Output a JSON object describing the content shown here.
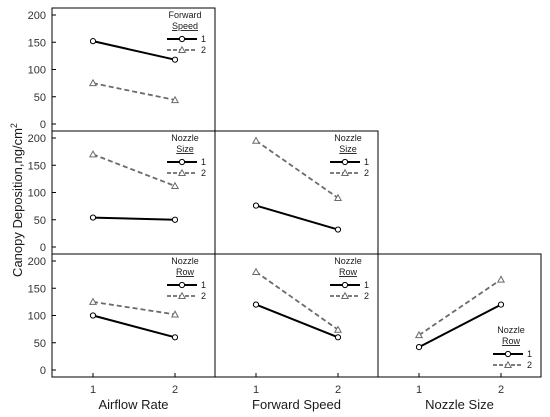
{
  "y_axis_label": "Canopy Deposition,ng/cm",
  "y_axis_label_superscript": "2",
  "x_axis_labels": [
    "Airflow Rate",
    "Forward Speed",
    "Nozzle Size"
  ],
  "colors": {
    "level1": "#000000",
    "level2": "#6b6b6b",
    "axis": "#000000"
  },
  "chart_data": [
    {
      "type": "line",
      "row": 0,
      "col": 0,
      "x": [
        1,
        2
      ],
      "xlabel": "Airflow Rate",
      "ylabel": "Canopy Deposition,ng/cm²",
      "ylim": [
        0,
        200
      ],
      "yticks": [
        0,
        50,
        100,
        150,
        200
      ],
      "legend_title": [
        "Forward",
        "Speed"
      ],
      "legend_loc": "top-right",
      "series": [
        {
          "name": "1",
          "values": [
            152,
            118
          ],
          "style": "solid",
          "marker": "circle"
        },
        {
          "name": "2",
          "values": [
            75,
            44
          ],
          "style": "dashed",
          "marker": "triangle"
        }
      ]
    },
    {
      "type": "line",
      "row": 1,
      "col": 0,
      "x": [
        1,
        2
      ],
      "xlabel": "Airflow Rate",
      "ylim": [
        0,
        200
      ],
      "yticks": [
        0,
        50,
        100,
        150,
        200
      ],
      "legend_title": [
        "Nozzle",
        "Size"
      ],
      "legend_loc": "top-right",
      "series": [
        {
          "name": "1",
          "values": [
            54,
            50
          ],
          "style": "solid",
          "marker": "circle"
        },
        {
          "name": "2",
          "values": [
            170,
            112
          ],
          "style": "dashed",
          "marker": "triangle"
        }
      ]
    },
    {
      "type": "line",
      "row": 1,
      "col": 1,
      "x": [
        1,
        2
      ],
      "xlabel": "Forward Speed",
      "ylim": [
        0,
        200
      ],
      "legend_title": [
        "Nozzle",
        "Size"
      ],
      "legend_loc": "top-right",
      "series": [
        {
          "name": "1",
          "values": [
            76,
            32
          ],
          "style": "solid",
          "marker": "circle"
        },
        {
          "name": "2",
          "values": [
            195,
            90
          ],
          "style": "dashed",
          "marker": "triangle"
        }
      ]
    },
    {
      "type": "line",
      "row": 2,
      "col": 0,
      "x": [
        1,
        2
      ],
      "xlabel": "Airflow Rate",
      "ylim": [
        0,
        200
      ],
      "yticks": [
        0,
        50,
        100,
        150,
        200
      ],
      "xticks": [
        "1",
        "2"
      ],
      "legend_title": [
        "Nozzle",
        "Row"
      ],
      "legend_loc": "top-right",
      "series": [
        {
          "name": "1",
          "values": [
            100,
            60
          ],
          "style": "solid",
          "marker": "circle"
        },
        {
          "name": "2",
          "values": [
            125,
            102
          ],
          "style": "dashed",
          "marker": "triangle"
        }
      ]
    },
    {
      "type": "line",
      "row": 2,
      "col": 1,
      "x": [
        1,
        2
      ],
      "xlabel": "Forward Speed",
      "ylim": [
        0,
        200
      ],
      "xticks": [
        "1",
        "2"
      ],
      "legend_title": [
        "Nozzle",
        "Row"
      ],
      "legend_loc": "top-right",
      "series": [
        {
          "name": "1",
          "values": [
            120,
            60
          ],
          "style": "solid",
          "marker": "circle"
        },
        {
          "name": "2",
          "values": [
            180,
            74
          ],
          "style": "dashed",
          "marker": "triangle"
        }
      ]
    },
    {
      "type": "line",
      "row": 2,
      "col": 2,
      "x": [
        1,
        2
      ],
      "xlabel": "Nozzle Size",
      "ylim": [
        0,
        200
      ],
      "xticks": [
        "1",
        "2"
      ],
      "legend_title": [
        "Nozzle",
        "Row"
      ],
      "legend_loc": "bottom-right",
      "series": [
        {
          "name": "1",
          "values": [
            42,
            120
          ],
          "style": "solid",
          "marker": "circle"
        },
        {
          "name": "2",
          "values": [
            64,
            166
          ],
          "style": "dashed",
          "marker": "triangle"
        }
      ]
    }
  ]
}
